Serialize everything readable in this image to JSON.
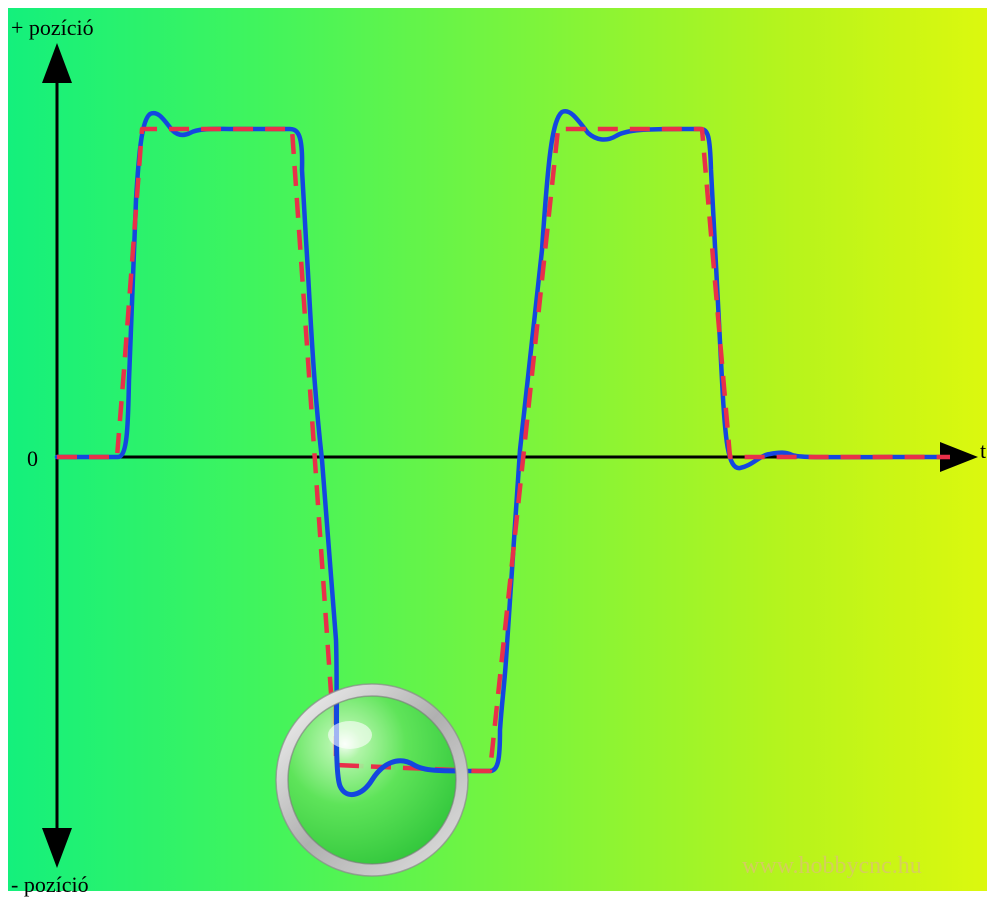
{
  "axes": {
    "y_top_label": "+ pozíció",
    "y_bottom_label": "- pozíció",
    "zero_label": "0",
    "x_label": "t"
  },
  "watermark": "www.hobbycnc.hu",
  "colors": {
    "target_line": "#e8304a",
    "actual_line": "#1447e0",
    "axis": "#000000",
    "watermark": "#d9c76a"
  },
  "series": [
    {
      "key": "target",
      "style": "dashed"
    },
    {
      "key": "actual",
      "style": "solid"
    }
  ],
  "icons": [
    "magnifier-lens-icon",
    "up-arrow-icon",
    "down-arrow-icon",
    "right-arrow-icon"
  ]
}
